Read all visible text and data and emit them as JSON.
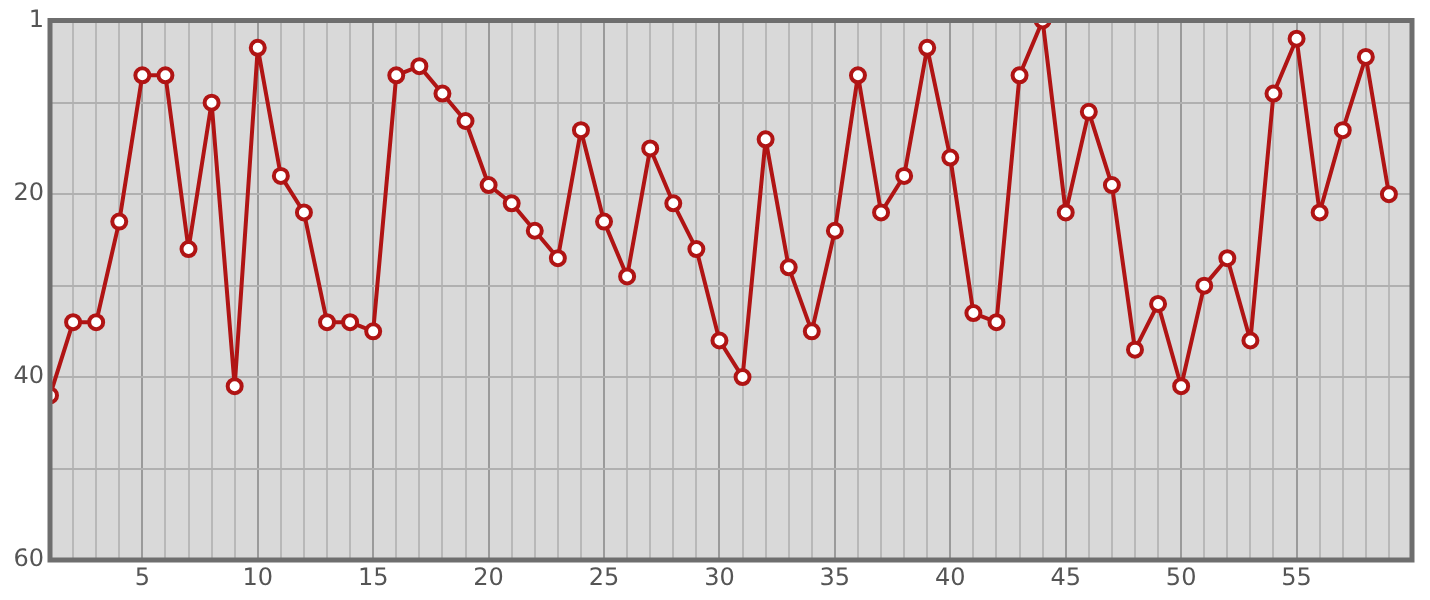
{
  "chart_data": {
    "type": "line",
    "x": [
      1,
      2,
      3,
      4,
      5,
      6,
      7,
      8,
      9,
      10,
      11,
      12,
      13,
      14,
      15,
      16,
      17,
      18,
      19,
      20,
      21,
      22,
      23,
      24,
      25,
      26,
      27,
      28,
      29,
      30,
      31,
      32,
      33,
      34,
      35,
      36,
      37,
      38,
      39,
      40,
      41,
      42,
      43,
      44,
      45,
      46,
      47,
      48,
      49,
      50,
      51,
      52,
      53,
      54,
      55,
      56,
      57,
      58,
      59
    ],
    "series": [
      {
        "color": "#b01414",
        "values": [
          42,
          34,
          34,
          23,
          7,
          7,
          26,
          10,
          41,
          4,
          18,
          22,
          34,
          34,
          35,
          7,
          6,
          9,
          12,
          19,
          21,
          24,
          27,
          13,
          23,
          29,
          15,
          21,
          26,
          36,
          40,
          14,
          28,
          35,
          24,
          7,
          22,
          18,
          4,
          16,
          33,
          34,
          7,
          1,
          22,
          11,
          19,
          37,
          32,
          41,
          30,
          27,
          36,
          9,
          3,
          22,
          13,
          5,
          20
        ]
      }
    ],
    "xlim": [
      1,
      60
    ],
    "xticks": [
      {
        "value": 1,
        "label": null
      },
      {
        "value": 2,
        "label": null
      },
      {
        "value": 3,
        "label": null
      },
      {
        "value": 4,
        "label": null
      },
      5,
      {
        "value": 6,
        "label": null
      },
      {
        "value": 7,
        "label": null
      },
      {
        "value": 8,
        "label": null
      },
      {
        "value": 9,
        "label": null
      },
      10,
      {
        "value": 11,
        "label": null
      },
      {
        "value": 12,
        "label": null
      },
      {
        "value": 13,
        "label": null
      },
      {
        "value": 14,
        "label": null
      },
      15,
      {
        "value": 16,
        "label": null
      },
      {
        "value": 17,
        "label": null
      },
      {
        "value": 18,
        "label": null
      },
      {
        "value": 19,
        "label": null
      },
      20,
      {
        "value": 21,
        "label": null
      },
      {
        "value": 22,
        "label": null
      },
      {
        "value": 23,
        "label": null
      },
      {
        "value": 24,
        "label": null
      },
      25,
      {
        "value": 26,
        "label": null
      },
      {
        "value": 27,
        "label": null
      },
      {
        "value": 28,
        "label": null
      },
      {
        "value": 29,
        "label": null
      },
      30,
      {
        "value": 31,
        "label": null
      },
      {
        "value": 32,
        "label": null
      },
      {
        "value": 33,
        "label": null
      },
      {
        "value": 34,
        "label": null
      },
      35,
      {
        "value": 36,
        "label": null
      },
      {
        "value": 37,
        "label": null
      },
      {
        "value": 38,
        "label": null
      },
      {
        "value": 39,
        "label": null
      },
      40,
      {
        "value": 41,
        "label": null
      },
      {
        "value": 42,
        "label": null
      },
      {
        "value": 43,
        "label": null
      },
      {
        "value": 44,
        "label": null
      },
      45,
      {
        "value": 46,
        "label": null
      },
      {
        "value": 47,
        "label": null
      },
      {
        "value": 48,
        "label": null
      },
      {
        "value": 49,
        "label": null
      },
      50,
      {
        "value": 51,
        "label": null
      },
      {
        "value": 52,
        "label": null
      },
      {
        "value": 53,
        "label": null
      },
      {
        "value": 54,
        "label": null
      },
      55,
      {
        "value": 56,
        "label": null
      },
      {
        "value": 57,
        "label": null
      },
      {
        "value": 58,
        "label": null
      },
      {
        "value": 59,
        "label": null
      },
      {
        "value": 60,
        "label": null
      }
    ],
    "ylim": [
      60,
      1
    ],
    "yticks": [
      1,
      {
        "value": 10,
        "label": null
      },
      20,
      {
        "value": 30,
        "label": null
      },
      40,
      {
        "value": 50,
        "label": null
      },
      60
    ],
    "grid": true,
    "marker": "circle",
    "line_style": "solid",
    "legend": false
  }
}
